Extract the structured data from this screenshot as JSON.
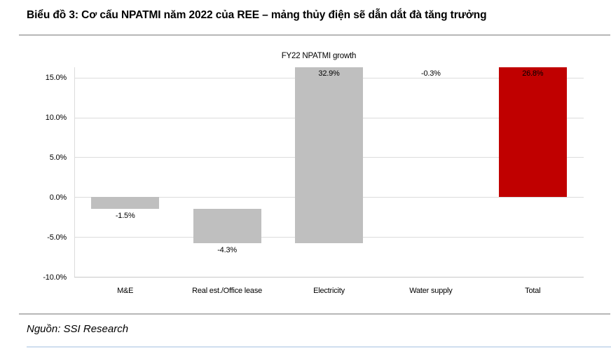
{
  "page": {
    "title": "Biểu đồ 3: Cơ cấu NPATMI năm 2022 của REE – mảng thủy điện sẽ dẫn dắt đà tăng trưởng",
    "source": "Nguồn: SSI Research"
  },
  "chart_data": {
    "type": "bar",
    "subtype": "waterfall",
    "title": "FY22 NPATMI growth",
    "categories": [
      "M&E",
      "Real est./Office lease",
      "Electricity",
      "Water supply",
      "Total"
    ],
    "values": [
      -1.5,
      -4.3,
      32.9,
      -0.3,
      26.8
    ],
    "data_labels": [
      "-1.5%",
      "-4.3%",
      "32.9%",
      "-0.3%",
      "26.8%"
    ],
    "bar_segments": [
      [
        0,
        -1.5
      ],
      [
        -1.5,
        -5.8
      ],
      [
        -5.8,
        27.1
      ],
      [
        27.1,
        26.8
      ],
      [
        0,
        26.8
      ]
    ],
    "bar_colors": [
      "#bfbfbf",
      "#bfbfbf",
      "#bfbfbf",
      "#bfbfbf",
      "#c00000"
    ],
    "y_ticks": [
      15,
      10,
      5,
      0,
      -5,
      -10
    ],
    "y_tick_labels": [
      "15.0%",
      "10.0%",
      "5.0%",
      "0.0%",
      "-5.0%",
      "-10.0%"
    ],
    "ylim_visible": [
      -10,
      16.3
    ],
    "grid": true,
    "legend": "none",
    "clipped_at_top": [
      "Electricity",
      "Total"
    ],
    "grid_color": "#dcdcdc",
    "axis_color": "#c9c9c9",
    "text_color": "#000000",
    "accent_color": "#c00000",
    "default_bar_color": "#bfbfbf"
  }
}
